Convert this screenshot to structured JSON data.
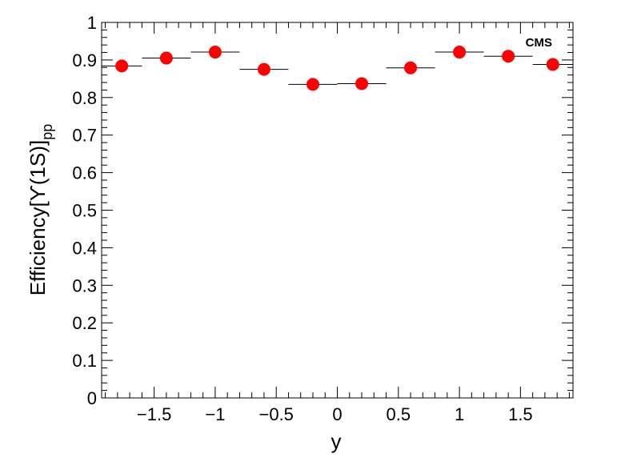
{
  "chart_data": {
    "type": "scatter",
    "annotation": "CMS",
    "x_label": "y",
    "y_label": "Efficiency[ϒ(1S)]",
    "y_label_sub": "pp",
    "color": "#ff0000",
    "x": [
      -1.765,
      -1.4,
      -1,
      -0.6,
      -0.2,
      0.2,
      0.6,
      1,
      1.4,
      1.765
    ],
    "x_err": [
      0.165,
      0.2,
      0.2,
      0.2,
      0.2,
      0.2,
      0.2,
      0.2,
      0.2,
      0.165
    ],
    "values": [
      0.884,
      0.905,
      0.921,
      0.875,
      0.835,
      0.837,
      0.879,
      0.921,
      0.91,
      0.888
    ],
    "xlim": [
      -1.93,
      1.93
    ],
    "ylim": [
      0,
      1
    ],
    "xticks": [
      {
        "value": -1.5,
        "label": "−1.5"
      },
      {
        "value": -1,
        "label": "−1"
      },
      {
        "value": -0.5,
        "label": "−0.5"
      },
      0,
      0.5,
      1,
      1.5
    ],
    "yticks": [
      0,
      0.1,
      0.2,
      0.3,
      0.4,
      0.5,
      0.6,
      0.7,
      0.8,
      0.9,
      1
    ]
  }
}
